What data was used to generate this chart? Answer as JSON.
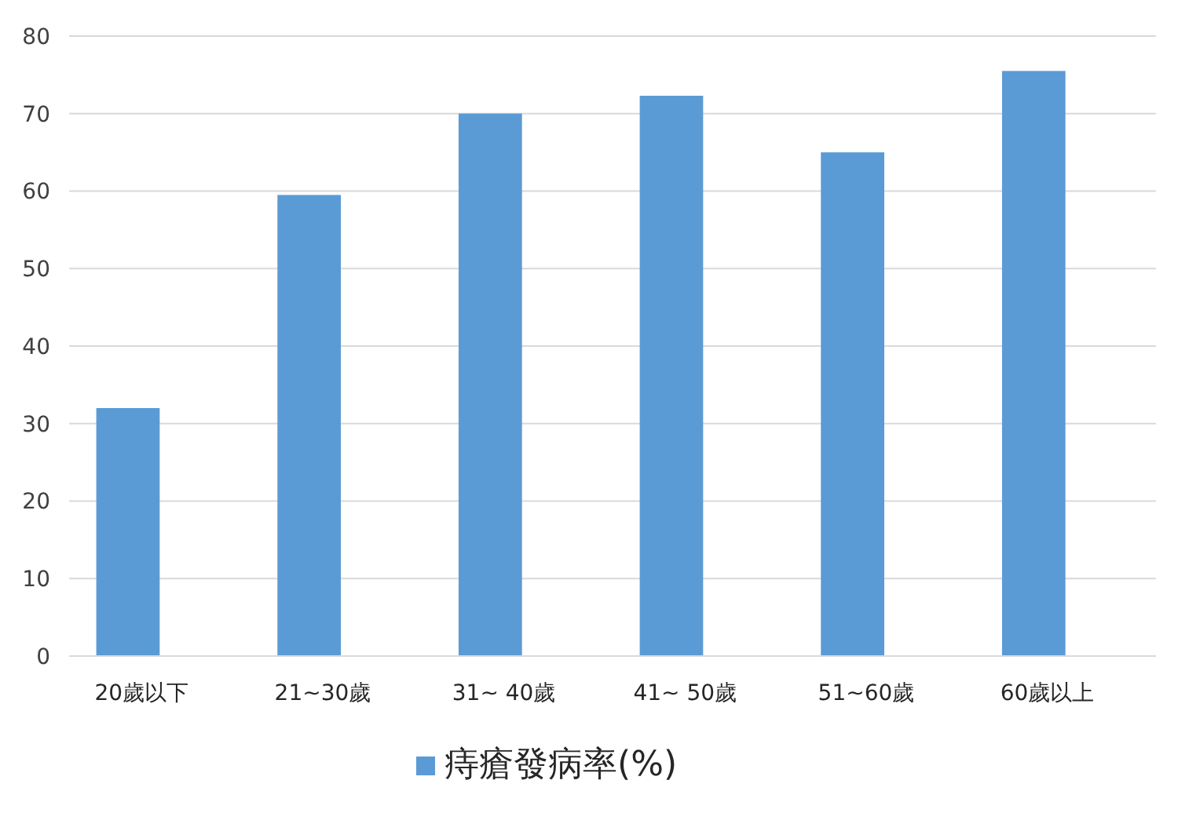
{
  "chart_data": {
    "type": "bar",
    "categories": [
      "20歲以下",
      "21~30歲",
      "31~ 40歲",
      "41~ 50歲",
      "51~60歲",
      "60歲以上"
    ],
    "series": [
      {
        "name": "痔瘡發病率(%)",
        "color": "#5b9bd5",
        "values": [
          32,
          59.5,
          70,
          72.3,
          65,
          75.5
        ]
      }
    ],
    "ylim": [
      0,
      80
    ],
    "yticks": [
      0,
      10,
      20,
      30,
      40,
      50,
      60,
      70,
      80
    ],
    "grid": "y",
    "legend": "bottom"
  }
}
